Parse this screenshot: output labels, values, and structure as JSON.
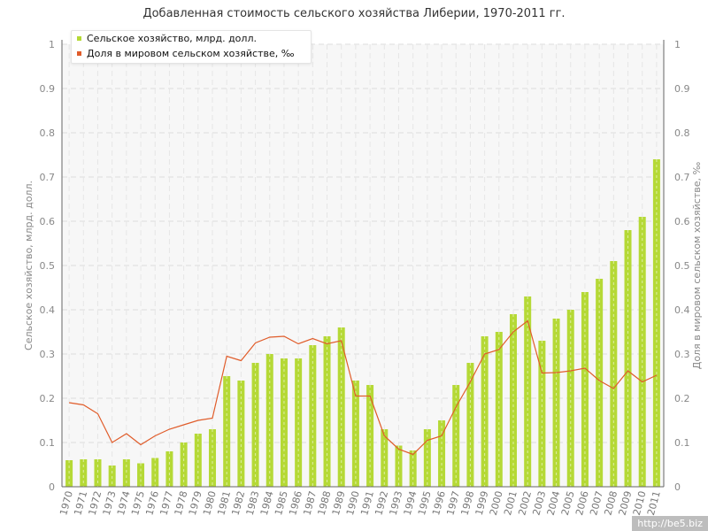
{
  "chart_data": {
    "type": "bar",
    "title": "Добавленная стоимость сельского хозяйства Либерии, 1970-2011 гг.",
    "categories": [
      "1970",
      "1971",
      "1972",
      "1973",
      "1974",
      "1975",
      "1976",
      "1977",
      "1978",
      "1979",
      "1980",
      "1981",
      "1982",
      "1983",
      "1984",
      "1985",
      "1986",
      "1987",
      "1988",
      "1989",
      "1990",
      "1991",
      "1992",
      "1993",
      "1994",
      "1995",
      "1996",
      "1997",
      "1998",
      "1999",
      "2000",
      "2001",
      "2002",
      "2003",
      "2004",
      "2005",
      "2006",
      "2007",
      "2008",
      "2009",
      "2010",
      "2011"
    ],
    "series": [
      {
        "name": "Сельское хозяйство, млрд. долл.",
        "type": "bar",
        "axis": "left",
        "color": "#b5d936",
        "values": [
          0.06,
          0.062,
          0.062,
          0.048,
          0.062,
          0.053,
          0.065,
          0.08,
          0.1,
          0.12,
          0.13,
          0.25,
          0.24,
          0.28,
          0.3,
          0.29,
          0.29,
          0.32,
          0.34,
          0.36,
          0.24,
          0.23,
          0.13,
          0.093,
          0.082,
          0.13,
          0.15,
          0.23,
          0.28,
          0.34,
          0.35,
          0.39,
          0.43,
          0.33,
          0.38,
          0.4,
          0.44,
          0.47,
          0.51,
          0.58,
          0.61,
          0.74
        ]
      },
      {
        "name": "Доля в мировом сельском хозяйстве, ‰",
        "type": "line",
        "axis": "right",
        "color": "#e05c2a",
        "values": [
          0.19,
          0.185,
          0.165,
          0.1,
          0.12,
          0.095,
          0.115,
          0.13,
          0.14,
          0.15,
          0.155,
          0.295,
          0.285,
          0.325,
          0.338,
          0.34,
          0.323,
          0.335,
          0.323,
          0.33,
          0.205,
          0.205,
          0.115,
          0.085,
          0.073,
          0.105,
          0.115,
          0.18,
          0.237,
          0.3,
          0.31,
          0.35,
          0.375,
          0.257,
          0.258,
          0.262,
          0.268,
          0.24,
          0.222,
          0.262,
          0.237,
          0.252
        ]
      }
    ],
    "ylabel": "Сельское хозяйство, млрд. долл.",
    "ylabel_right": "Доля в мировом сельском хозяйстве, ‰",
    "xlabel": "",
    "ylim": [
      0,
      1
    ],
    "ylim_right": [
      0,
      1
    ],
    "yticks": [
      "0",
      "0.1",
      "0.2",
      "0.3",
      "0.4",
      "0.5",
      "0.6",
      "0.7",
      "0.8",
      "0.9",
      "1"
    ],
    "grid": true,
    "legend_position": "top-left"
  },
  "watermark": "http://be5.biz"
}
